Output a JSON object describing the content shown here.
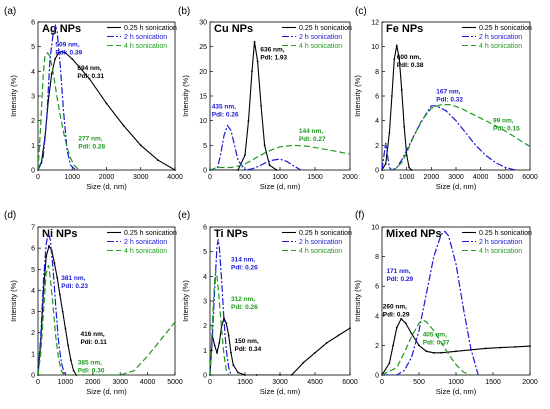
{
  "chart_data": [
    {
      "type": "line",
      "panel_label": "(a)",
      "title": "Ag NPs",
      "xlabel": "Size (d, nm)",
      "ylabel": "Intensity (%)",
      "xlim": [
        0,
        4000
      ],
      "ylim": [
        0,
        6
      ],
      "xticks": [
        "0",
        "1000",
        "2000",
        "3000",
        "4000"
      ],
      "yticks": [
        "0",
        "1",
        "2",
        "3",
        "4",
        "5",
        "6"
      ],
      "legend": [
        "0.25 h sonication",
        "2 h sonication",
        "4 h sonication"
      ],
      "legend_position": "top-right",
      "series": [
        {
          "name": "0.25 h sonication",
          "x": [
            0,
            100,
            200,
            300,
            400,
            500,
            600,
            694,
            800,
            1000,
            1500,
            2000,
            2500,
            3000,
            3500,
            4000
          ],
          "y": [
            0,
            0.3,
            1.3,
            2.8,
            3.9,
            4.5,
            4.75,
            4.8,
            4.75,
            4.5,
            3.7,
            2.7,
            1.8,
            1.0,
            0.4,
            0
          ]
        },
        {
          "name": "2 h sonication",
          "x": [
            0,
            150,
            250,
            350,
            450,
            509,
            560,
            650,
            750,
            850,
            950,
            1100
          ],
          "y": [
            0,
            0.5,
            2.0,
            4.5,
            5.6,
            5.85,
            5.6,
            4.2,
            2.3,
            0.8,
            0.2,
            0
          ]
        },
        {
          "name": "4 h sonication",
          "x": [
            0,
            80,
            150,
            200,
            277,
            350,
            450,
            550,
            650,
            750,
            850,
            950,
            1050,
            1200
          ],
          "y": [
            0,
            1.8,
            3.8,
            4.6,
            4.75,
            4.6,
            3.9,
            3.0,
            2.2,
            1.5,
            0.9,
            0.5,
            0.2,
            0
          ]
        }
      ],
      "annotations": [
        {
          "text": [
            "509 nm,",
            "PdI: 0.39"
          ],
          "series": 1,
          "x": 509,
          "y": 5.0
        },
        {
          "text": [
            "694 nm,",
            "PdI: 0.31"
          ],
          "series": 0,
          "x": 1150,
          "y": 4.05
        },
        {
          "text": [
            "277 nm,",
            "PdI: 0.28"
          ],
          "series": 2,
          "x": 1180,
          "y": 1.2
        }
      ]
    },
    {
      "type": "line",
      "panel_label": "(b)",
      "title": "Cu NPs",
      "xlabel": "Size (d, nm)",
      "ylabel": "Intensity (%)",
      "xlim": [
        0,
        2000
      ],
      "ylim": [
        0,
        30
      ],
      "xticks": [
        "0",
        "500",
        "1000",
        "1500",
        "2000"
      ],
      "yticks": [
        "0",
        "5",
        "10",
        "15",
        "20",
        "25",
        "30"
      ],
      "legend": [
        "0.25 h sonication",
        "2 h sonication",
        "4 h sonication"
      ],
      "legend_position": "top-right",
      "series": [
        {
          "name": "0.25 h sonication",
          "x": [
            0,
            400,
            500,
            550,
            600,
            636,
            680,
            730,
            780,
            850,
            950
          ],
          "y": [
            0,
            0,
            3,
            10,
            20,
            26,
            22,
            13,
            5,
            1,
            0
          ]
        },
        {
          "name": "2 h sonication",
          "x": [
            0,
            100,
            150,
            200,
            250,
            300,
            350,
            400,
            500,
            600,
            700,
            800,
            900,
            1000,
            1100,
            1200,
            1300
          ],
          "y": [
            0,
            0,
            3,
            7,
            9,
            8,
            5,
            2,
            0,
            0.2,
            0.8,
            1.5,
            2.0,
            2.2,
            1.7,
            0.8,
            0
          ]
        },
        {
          "name": "4 h sonication",
          "x": [
            0,
            100,
            200,
            300,
            400,
            500,
            600,
            700,
            800,
            900,
            1000,
            1200,
            1400,
            1600,
            1800,
            2000
          ],
          "y": [
            0,
            0.5,
            0.5,
            0.5,
            0.8,
            1.2,
            2.0,
            2.8,
            3.6,
            4.2,
            4.7,
            5.0,
            4.8,
            4.3,
            3.8,
            3.2
          ]
        }
      ],
      "annotations": [
        {
          "text": [
            "636 nm,",
            "PdI: 1.93"
          ],
          "series": 0,
          "x": 720,
          "y": 24
        },
        {
          "text": [
            "435 nm,",
            "PdI: 0.26"
          ],
          "series": 1,
          "x": 25,
          "y": 12.5
        },
        {
          "text": [
            "144 nm,",
            "PdI: 0.27"
          ],
          "series": 2,
          "x": 1270,
          "y": 7.5
        }
      ]
    },
    {
      "type": "line",
      "panel_label": "(c)",
      "title": "Fe NPs",
      "xlabel": "Size (d, nm)",
      "ylabel": "Intensity (%)",
      "xlim": [
        0,
        6000
      ],
      "ylim": [
        0,
        12
      ],
      "xticks": [
        "0",
        "1000",
        "2000",
        "3000",
        "4000",
        "5000",
        "6000"
      ],
      "yticks": [
        "0",
        "2",
        "4",
        "6",
        "8",
        "10",
        "12"
      ],
      "legend": [
        "0.25 h sonication",
        "2 h sonication",
        "4 h sonication"
      ],
      "legend_position": "top-right",
      "series": [
        {
          "name": "0.25 h sonication",
          "x": [
            0,
            150,
            300,
            400,
            500,
            600,
            700,
            800,
            900,
            1000,
            1100,
            1200
          ],
          "y": [
            0,
            0.5,
            3,
            6,
            9,
            10.1,
            9,
            6.5,
            3.5,
            1.2,
            0.2,
            0
          ]
        },
        {
          "name": "2 h sonication",
          "x": [
            0,
            100,
            150,
            200,
            300,
            400,
            600,
            800,
            1000,
            1400,
            1800,
            2000,
            2200,
            2600,
            3000,
            3400,
            3800,
            4200,
            4600,
            5000,
            5400
          ],
          "y": [
            0,
            1.5,
            2.2,
            1.5,
            0.2,
            0,
            0.2,
            0.8,
            1.6,
            3.2,
            4.6,
            5.2,
            5.2,
            4.8,
            4.0,
            3.0,
            2.0,
            1.2,
            0.6,
            0.2,
            0
          ]
        },
        {
          "name": "4 h sonication",
          "x": [
            0,
            500,
            800,
            1000,
            1300,
            1600,
            2000,
            2400,
            2800,
            3200,
            3600,
            4000,
            4400,
            4800,
            5200,
            5600,
            6000
          ],
          "y": [
            0,
            0,
            0.6,
            1.4,
            2.8,
            4.0,
            5.0,
            5.3,
            5.3,
            5.0,
            4.6,
            4.2,
            3.8,
            3.4,
            2.9,
            2.4,
            1.9
          ]
        }
      ],
      "annotations": [
        {
          "text": [
            "600 nm,",
            "PdI: 0.38"
          ],
          "series": 0,
          "x": 600,
          "y": 9.0
        },
        {
          "text": [
            "167 nm,",
            "PdI: 0.32"
          ],
          "series": 1,
          "x": 2200,
          "y": 6.2
        },
        {
          "text": [
            "99 nm,",
            "PdI: 0.15"
          ],
          "series": 2,
          "x": 4500,
          "y": 3.85
        }
      ]
    },
    {
      "type": "line",
      "panel_label": "(d)",
      "title": "Ni NPs",
      "xlabel": "Size (d, nm)",
      "ylabel": "Intensity (%)",
      "xlim": [
        0,
        5000
      ],
      "ylim": [
        0,
        7
      ],
      "xticks": [
        "0",
        "1000",
        "2000",
        "3000",
        "4000",
        "5000"
      ],
      "yticks": [
        "0",
        "1",
        "2",
        "3",
        "4",
        "5",
        "6",
        "7"
      ],
      "legend": [
        "0.25 h  sonication",
        "2 h sonication",
        "4 h sonication"
      ],
      "legend_position": "top-right",
      "series": [
        {
          "name": "0.25 h  sonication",
          "x": [
            0,
            100,
            200,
            300,
            400,
            500,
            600,
            700,
            800,
            900,
            1000,
            1100,
            1200,
            1300,
            1400
          ],
          "y": [
            0,
            1.5,
            4.0,
            5.6,
            6.1,
            5.9,
            5.3,
            4.6,
            3.8,
            3.0,
            2.2,
            1.4,
            0.7,
            0.2,
            0
          ]
        },
        {
          "name": "2 h sonication",
          "x": [
            0,
            100,
            200,
            300,
            381,
            450,
            550,
            650,
            750,
            850,
            950,
            1050
          ],
          "y": [
            0,
            1.8,
            4.5,
            6.2,
            6.7,
            6.4,
            5.0,
            3.2,
            1.6,
            0.6,
            0.1,
            0
          ]
        },
        {
          "name": "4 h sonication",
          "x": [
            0,
            100,
            200,
            300,
            385,
            450,
            550,
            650,
            750,
            850,
            950,
            1000,
            3000,
            3500,
            4000,
            4500,
            5000
          ],
          "y": [
            0,
            1.0,
            3.0,
            4.8,
            5.2,
            4.6,
            3.2,
            1.8,
            0.8,
            0.2,
            0,
            0,
            0,
            0.2,
            0.9,
            1.7,
            2.5
          ]
        }
      ],
      "annotations": [
        {
          "text": [
            "381 nm,",
            "PdI: 0.23"
          ],
          "series": 1,
          "x": 850,
          "y": 4.5
        },
        {
          "text": [
            "416 nm,",
            "PdI: 0.11"
          ],
          "series": 0,
          "x": 1550,
          "y": 1.85
        },
        {
          "text": [
            "385 nm,",
            "PdI: 0.30"
          ],
          "series": 2,
          "x": 1450,
          "y": 0.5
        }
      ]
    },
    {
      "type": "line",
      "panel_label": "(e)",
      "title": "Ti NPs",
      "xlabel": "Size (d, nm)",
      "ylabel": "Intensity (%)",
      "xlim": [
        0,
        6000
      ],
      "ylim": [
        0,
        6
      ],
      "xticks": [
        "0",
        "1500",
        "3000",
        "4500",
        "6000"
      ],
      "yticks": [
        "0",
        "1",
        "2",
        "3",
        "4",
        "5",
        "6"
      ],
      "legend": [
        "0.25 h sonication",
        "2 h sonication",
        "4 h sonication"
      ],
      "legend_position": "top-right",
      "series": [
        {
          "name": "0.25 h sonication",
          "x": [
            0,
            100,
            200,
            300,
            400,
            500,
            600,
            700,
            800,
            900,
            1000,
            1200,
            1500,
            2000,
            3000,
            3500,
            4000,
            4500,
            5000,
            5500,
            6000
          ],
          "y": [
            0,
            1.6,
            1.2,
            0.9,
            1.3,
            2.0,
            2.3,
            2.1,
            1.6,
            0.9,
            0.4,
            0.1,
            0,
            0,
            0,
            0,
            0.5,
            0.9,
            1.3,
            1.6,
            1.9
          ]
        },
        {
          "name": "2 h sonication",
          "x": [
            0,
            100,
            200,
            300,
            350,
            400,
            500,
            600,
            700,
            800,
            900
          ],
          "y": [
            0,
            1.5,
            3.5,
            5.2,
            5.5,
            5.2,
            3.8,
            2.2,
            1.0,
            0.3,
            0
          ]
        },
        {
          "name": "4 h sonication",
          "x": [
            0,
            100,
            200,
            250,
            300,
            400,
            500,
            600,
            700,
            800
          ],
          "y": [
            0,
            2.0,
            3.9,
            4.2,
            4.0,
            3.0,
            1.8,
            0.8,
            0.2,
            0
          ]
        }
      ],
      "annotations": [
        {
          "text": [
            "314 nm,",
            "PdI: 0.26"
          ],
          "series": 1,
          "x": 900,
          "y": 4.6
        },
        {
          "text": [
            "312 nm,",
            "PdI: 0.26"
          ],
          "series": 2,
          "x": 900,
          "y": 3.0
        },
        {
          "text": [
            "150 nm,",
            "PdI: 0.34"
          ],
          "series": 0,
          "x": 1050,
          "y": 1.3
        }
      ]
    },
    {
      "type": "line",
      "panel_label": "(f)",
      "title": "Mixed NPs",
      "xlabel": "Size (d, nm)",
      "ylabel": "Intensity (%)",
      "xlim": [
        0,
        2000
      ],
      "ylim": [
        0,
        10
      ],
      "xticks": [
        "0",
        "500",
        "1000",
        "1500",
        "2000"
      ],
      "yticks": [
        "0",
        "2",
        "4",
        "6",
        "8",
        "10"
      ],
      "legend": [
        "0.25 h sonication",
        "2 h sonication",
        "4 h sonication"
      ],
      "legend_position": "top-right",
      "series": [
        {
          "name": "0.25 h sonication",
          "x": [
            0,
            100,
            150,
            200,
            260,
            320,
            400,
            500,
            600,
            700,
            800,
            1000,
            1200,
            1400,
            1600,
            1800,
            2000
          ],
          "y": [
            0,
            0.8,
            2.0,
            3.2,
            3.8,
            3.5,
            2.8,
            2.0,
            1.6,
            1.5,
            1.5,
            1.6,
            1.7,
            1.8,
            1.85,
            1.9,
            1.95
          ]
        },
        {
          "name": "2 h sonication",
          "x": [
            0,
            200,
            300,
            400,
            500,
            600,
            700,
            800,
            850,
            900,
            1000,
            1100,
            1200,
            1300
          ],
          "y": [
            0,
            0,
            0.3,
            1.2,
            3.0,
            5.5,
            8.0,
            9.5,
            9.7,
            9.4,
            7.5,
            4.5,
            1.8,
            0
          ]
        },
        {
          "name": "4 h sonication",
          "x": [
            0,
            200,
            300,
            400,
            500,
            550,
            600,
            700,
            800,
            900,
            1000,
            1100,
            1200
          ],
          "y": [
            0,
            0.5,
            1.5,
            2.6,
            3.5,
            3.7,
            3.6,
            3.0,
            2.2,
            1.4,
            0.7,
            0.2,
            0
          ]
        }
      ],
      "annotations": [
        {
          "text": [
            "171 nm,",
            "PdI: 0.29"
          ],
          "series": 1,
          "x": 60,
          "y": 6.9
        },
        {
          "text": [
            "260 nm,",
            "PdI: 0.29"
          ],
          "series": 0,
          "x": 10,
          "y": 4.5
        },
        {
          "text": [
            "405 nm,",
            "PdI: 0.37"
          ],
          "series": 2,
          "x": 550,
          "y": 2.6
        }
      ]
    }
  ],
  "colors": {
    "series": [
      "#000000",
      "#1a1ad6",
      "#1e9a1e"
    ],
    "axis": "#000000"
  }
}
